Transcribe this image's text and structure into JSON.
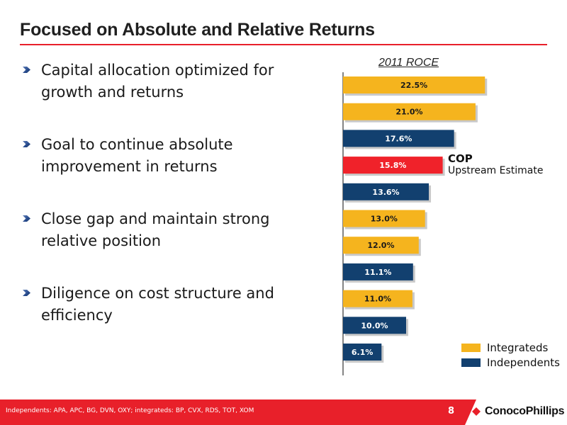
{
  "slide": {
    "title": "Focused on Absolute and Relative Returns",
    "bullets": [
      "Capital allocation optimized for growth and returns",
      "Goal to continue absolute improvement in returns",
      "Close gap and maintain strong relative position",
      "Diligence on cost structure and efficiency"
    ],
    "footnote": "Independents: APA, APC, BG, DVN, OXY; integrateds: BP, CVX, RDS, TOT, XOM",
    "page_number": "8",
    "logo": "ConocoPhillips"
  },
  "colors": {
    "integrated": "#f5b41e",
    "independent": "#12406f",
    "cop": "#f0222a",
    "accent": "#e8202a"
  },
  "chart_data": {
    "type": "bar",
    "orientation": "horizontal",
    "title": "2011 ROCE",
    "xlim": [
      0,
      25
    ],
    "bars": [
      {
        "value": 22.5,
        "label": "22.5%",
        "group": "integrated"
      },
      {
        "value": 21.0,
        "label": "21.0%",
        "group": "integrated"
      },
      {
        "value": 17.6,
        "label": "17.6%",
        "group": "independent"
      },
      {
        "value": 15.8,
        "label": "15.8%",
        "group": "cop"
      },
      {
        "value": 13.6,
        "label": "13.6%",
        "group": "independent"
      },
      {
        "value": 13.0,
        "label": "13.0%",
        "group": "integrated"
      },
      {
        "value": 12.0,
        "label": "12.0%",
        "group": "integrated"
      },
      {
        "value": 11.1,
        "label": "11.1%",
        "group": "independent"
      },
      {
        "value": 11.0,
        "label": "11.0%",
        "group": "integrated"
      },
      {
        "value": 10.0,
        "label": "10.0%",
        "group": "independent"
      },
      {
        "value": 6.1,
        "label": "6.1%",
        "group": "independent"
      }
    ],
    "annotation": {
      "line1": "COP",
      "line2": "Upstream Estimate"
    },
    "legend": [
      {
        "name": "Integrateds",
        "group": "integrated"
      },
      {
        "name": "Independents",
        "group": "independent"
      }
    ],
    "legend_position": "bottom-right"
  }
}
